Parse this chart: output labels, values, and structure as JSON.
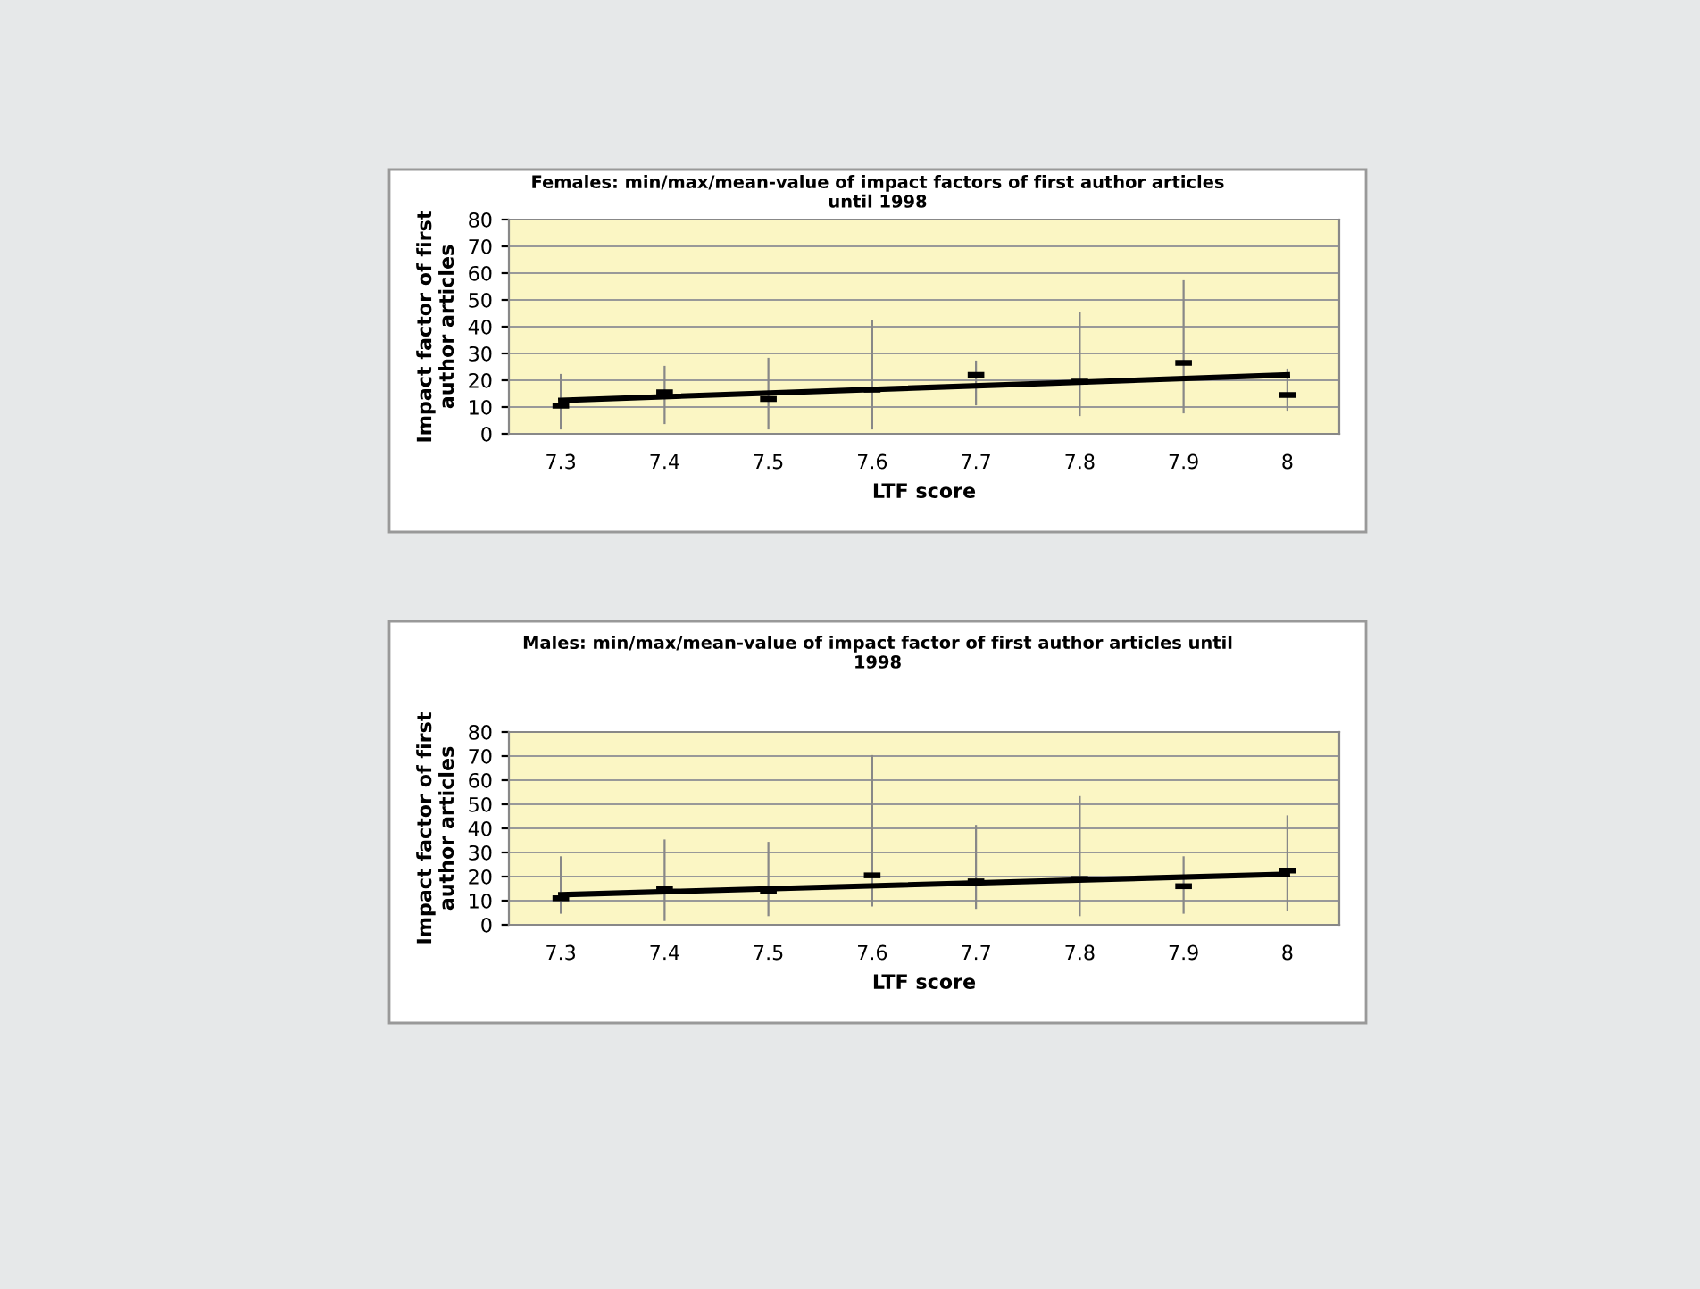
{
  "chart_data": [
    {
      "type": "scatter",
      "title": "Females: min/max/mean-value of impact factors of first author articles\nuntil 1998",
      "xlabel": "LTF score",
      "ylabel": "Impact factor of first\nauthor articles",
      "categories": [
        "7.3",
        "7.4",
        "7.5",
        "7.6",
        "7.7",
        "7.8",
        "7.9",
        "8"
      ],
      "ylim": [
        0,
        80
      ],
      "yticks": [
        0,
        10,
        20,
        30,
        40,
        50,
        60,
        70,
        80
      ],
      "grid": "y",
      "legend": false,
      "series": [
        {
          "type": "scatter",
          "color": "#000000",
          "x": [
            "7.3",
            "7.4",
            "7.5",
            "7.6",
            "7.7",
            "7.8",
            "7.9",
            "8"
          ],
          "values": [
            10.5,
            15.5,
            13,
            16.5,
            22,
            19.5,
            26.5,
            14.5
          ],
          "errors": [
            [
              2,
              22
            ],
            [
              4,
              25
            ],
            [
              2,
              28
            ],
            [
              2,
              42
            ],
            [
              11,
              27
            ],
            [
              7,
              45
            ],
            [
              8,
              57
            ],
            [
              9,
              24
            ]
          ]
        },
        {
          "type": "line",
          "color": "#000000",
          "x": [
            "7.3",
            "8"
          ],
          "values": [
            12.5,
            22
          ]
        }
      ]
    },
    {
      "type": "scatter",
      "title": "Males: min/max/mean-value of impact factor of first author articles until\n1998",
      "xlabel": "LTF score",
      "ylabel": "Impact factor of first\nauthor articles",
      "categories": [
        "7.3",
        "7.4",
        "7.5",
        "7.6",
        "7.7",
        "7.8",
        "7.9",
        "8"
      ],
      "ylim": [
        0,
        80
      ],
      "yticks": [
        0,
        10,
        20,
        30,
        40,
        50,
        60,
        70,
        80
      ],
      "grid": "y",
      "legend": false,
      "series": [
        {
          "type": "scatter",
          "color": "#000000",
          "x": [
            "7.3",
            "7.4",
            "7.5",
            "7.6",
            "7.7",
            "7.8",
            "7.9",
            "8"
          ],
          "values": [
            11,
            15,
            14,
            20.5,
            18,
            19,
            16,
            22.5
          ],
          "errors": [
            [
              5,
              28
            ],
            [
              2,
              35
            ],
            [
              4,
              34
            ],
            [
              8,
              70
            ],
            [
              7,
              41
            ],
            [
              4,
              53
            ],
            [
              5,
              28
            ],
            [
              6,
              45
            ]
          ]
        },
        {
          "type": "line",
          "color": "#000000",
          "x": [
            "7.3",
            "8"
          ],
          "values": [
            12.5,
            21
          ]
        }
      ]
    }
  ]
}
